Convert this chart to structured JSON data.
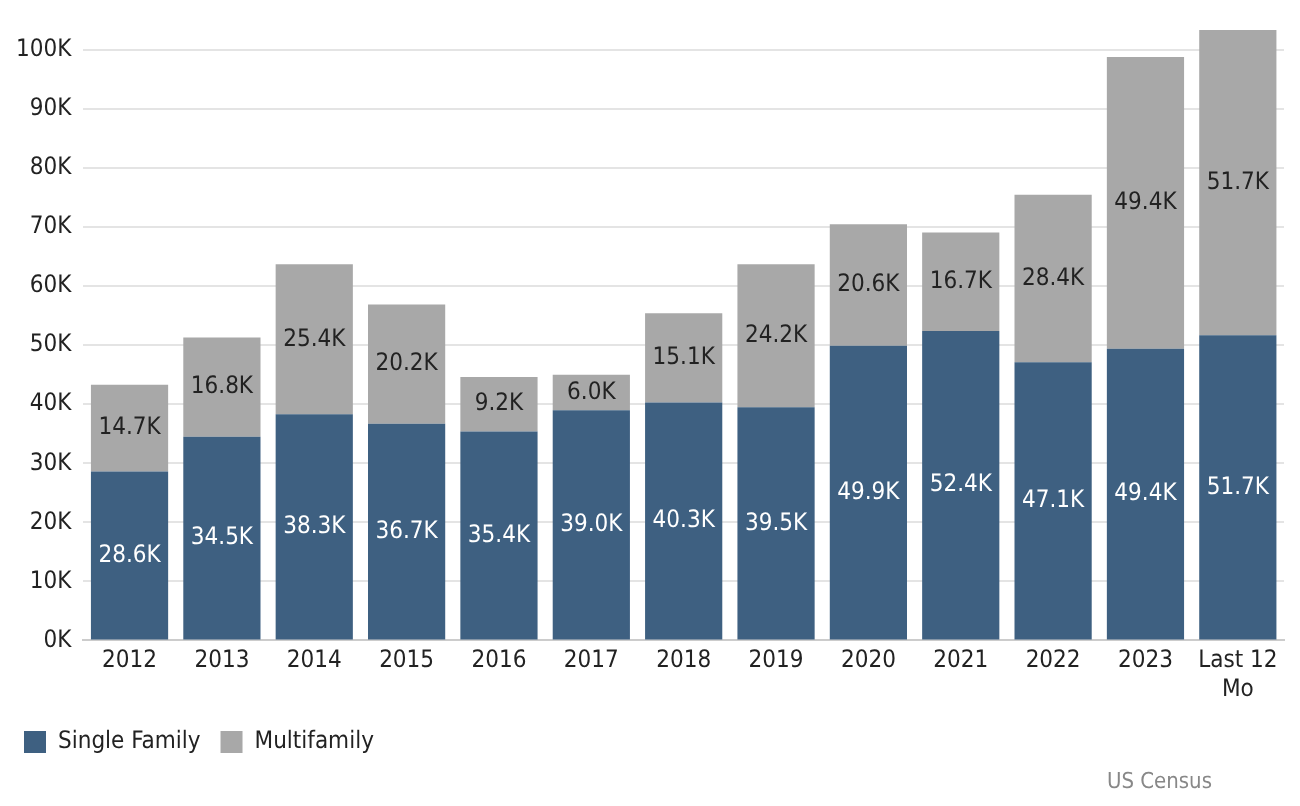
{
  "chart_data": {
    "type": "bar",
    "stacked": true,
    "categories": [
      "2012",
      "2013",
      "2014",
      "2015",
      "2016",
      "2017",
      "2018",
      "2019",
      "2020",
      "2021",
      "2022",
      "2023",
      "Last 12 Mo"
    ],
    "series": [
      {
        "name": "Single Family",
        "color": "#3e6081",
        "values": [
          28.6,
          34.5,
          38.3,
          36.7,
          35.4,
          39.0,
          40.3,
          39.5,
          49.9,
          52.4,
          47.1,
          49.4,
          51.7
        ],
        "value_labels": [
          "28.6K",
          "34.5K",
          "38.3K",
          "36.7K",
          "35.4K",
          "39.0K",
          "40.3K",
          "39.5K",
          "49.9K",
          "52.4K",
          "47.1K",
          "49.4K",
          "51.7K"
        ]
      },
      {
        "name": "Multifamily",
        "color": "#a8a8a8",
        "values": [
          14.7,
          16.8,
          25.4,
          20.2,
          9.2,
          6.0,
          15.1,
          24.2,
          20.6,
          16.7,
          28.4,
          49.4,
          51.7
        ],
        "value_labels": [
          "14.7K",
          "16.8K",
          "25.4K",
          "20.2K",
          "9.2K",
          "6.0K",
          "15.1K",
          "24.2K",
          "20.6K",
          "16.7K",
          "28.4K",
          "49.4K",
          "51.7K"
        ]
      }
    ],
    "ylim": [
      0,
      104
    ],
    "yticks": [
      {
        "value": 0,
        "label": "0K"
      },
      {
        "value": 10,
        "label": "10K"
      },
      {
        "value": 20,
        "label": "20K"
      },
      {
        "value": 30,
        "label": "30K"
      },
      {
        "value": 40,
        "label": "40K"
      },
      {
        "value": 50,
        "label": "50K"
      },
      {
        "value": 60,
        "label": "60K"
      },
      {
        "value": 70,
        "label": "70K"
      },
      {
        "value": 80,
        "label": "80K"
      },
      {
        "value": 90,
        "label": "90K"
      },
      {
        "value": 100,
        "label": "100K"
      }
    ],
    "grid": "y",
    "legend": "bottom left",
    "annotations": [
      "US Census"
    ]
  }
}
